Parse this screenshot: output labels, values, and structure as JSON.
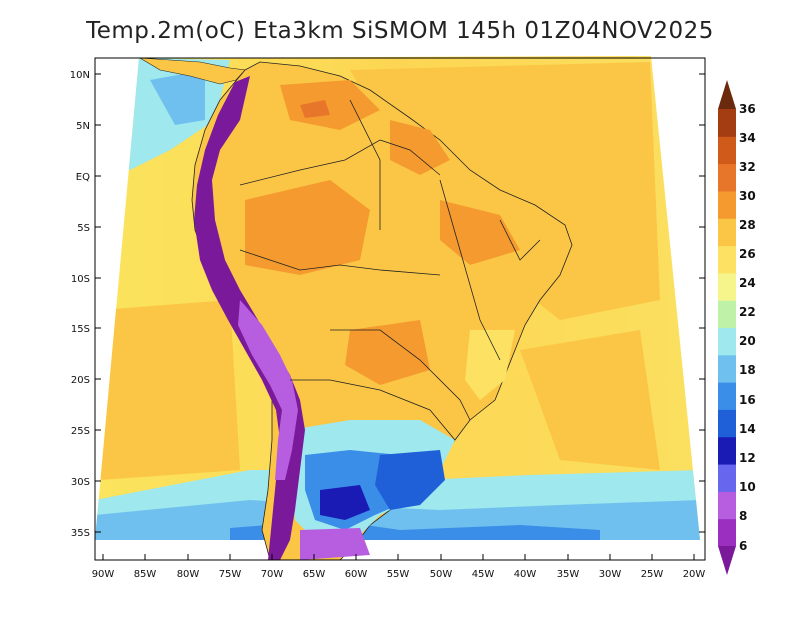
{
  "title": "Temp.2m(oC) Eta3km SiSMOM 145h 01Z04NOV2025",
  "axes": {
    "lat_labels": [
      "10N",
      "5N",
      "EQ",
      "5S",
      "10S",
      "15S",
      "20S",
      "25S",
      "30S",
      "35S"
    ],
    "lon_labels": [
      "90W",
      "85W",
      "80W",
      "75W",
      "70W",
      "65W",
      "60W",
      "55W",
      "50W",
      "45W",
      "40W",
      "35W",
      "30W",
      "25W",
      "20W"
    ]
  },
  "colorbar": {
    "labels": [
      "6",
      "8",
      "10",
      "12",
      "14",
      "16",
      "18",
      "20",
      "22",
      "24",
      "26",
      "28",
      "30",
      "32",
      "34",
      "36"
    ],
    "colors": [
      "#7a1a9a",
      "#9a2fc0",
      "#b65de0",
      "#6666ee",
      "#1a1ab4",
      "#1f5fd8",
      "#3b8ee8",
      "#6fc0ee",
      "#9ee8ee",
      "#bff2a8",
      "#f6f58c",
      "#fce163",
      "#fbc646",
      "#f49a2e",
      "#e8762a",
      "#cf5a1a",
      "#a43d12",
      "#6b2a0e"
    ]
  },
  "chart_data": {
    "type": "heatmap",
    "title": "Temp.2m(oC) Eta3km SiSMOM 145h 01Z04NOV2025",
    "variable": "2 m temperature",
    "units": "oC",
    "model": "Eta3km SiSMOM",
    "forecast_hour": "145h",
    "valid_time": "01Z04NOV2025",
    "lon_range": [
      -90,
      -20
    ],
    "lat_range": [
      -38,
      11
    ],
    "contour_levels": [
      6,
      8,
      10,
      12,
      14,
      16,
      18,
      20,
      22,
      24,
      26,
      28,
      30,
      32,
      34,
      36
    ]
  }
}
